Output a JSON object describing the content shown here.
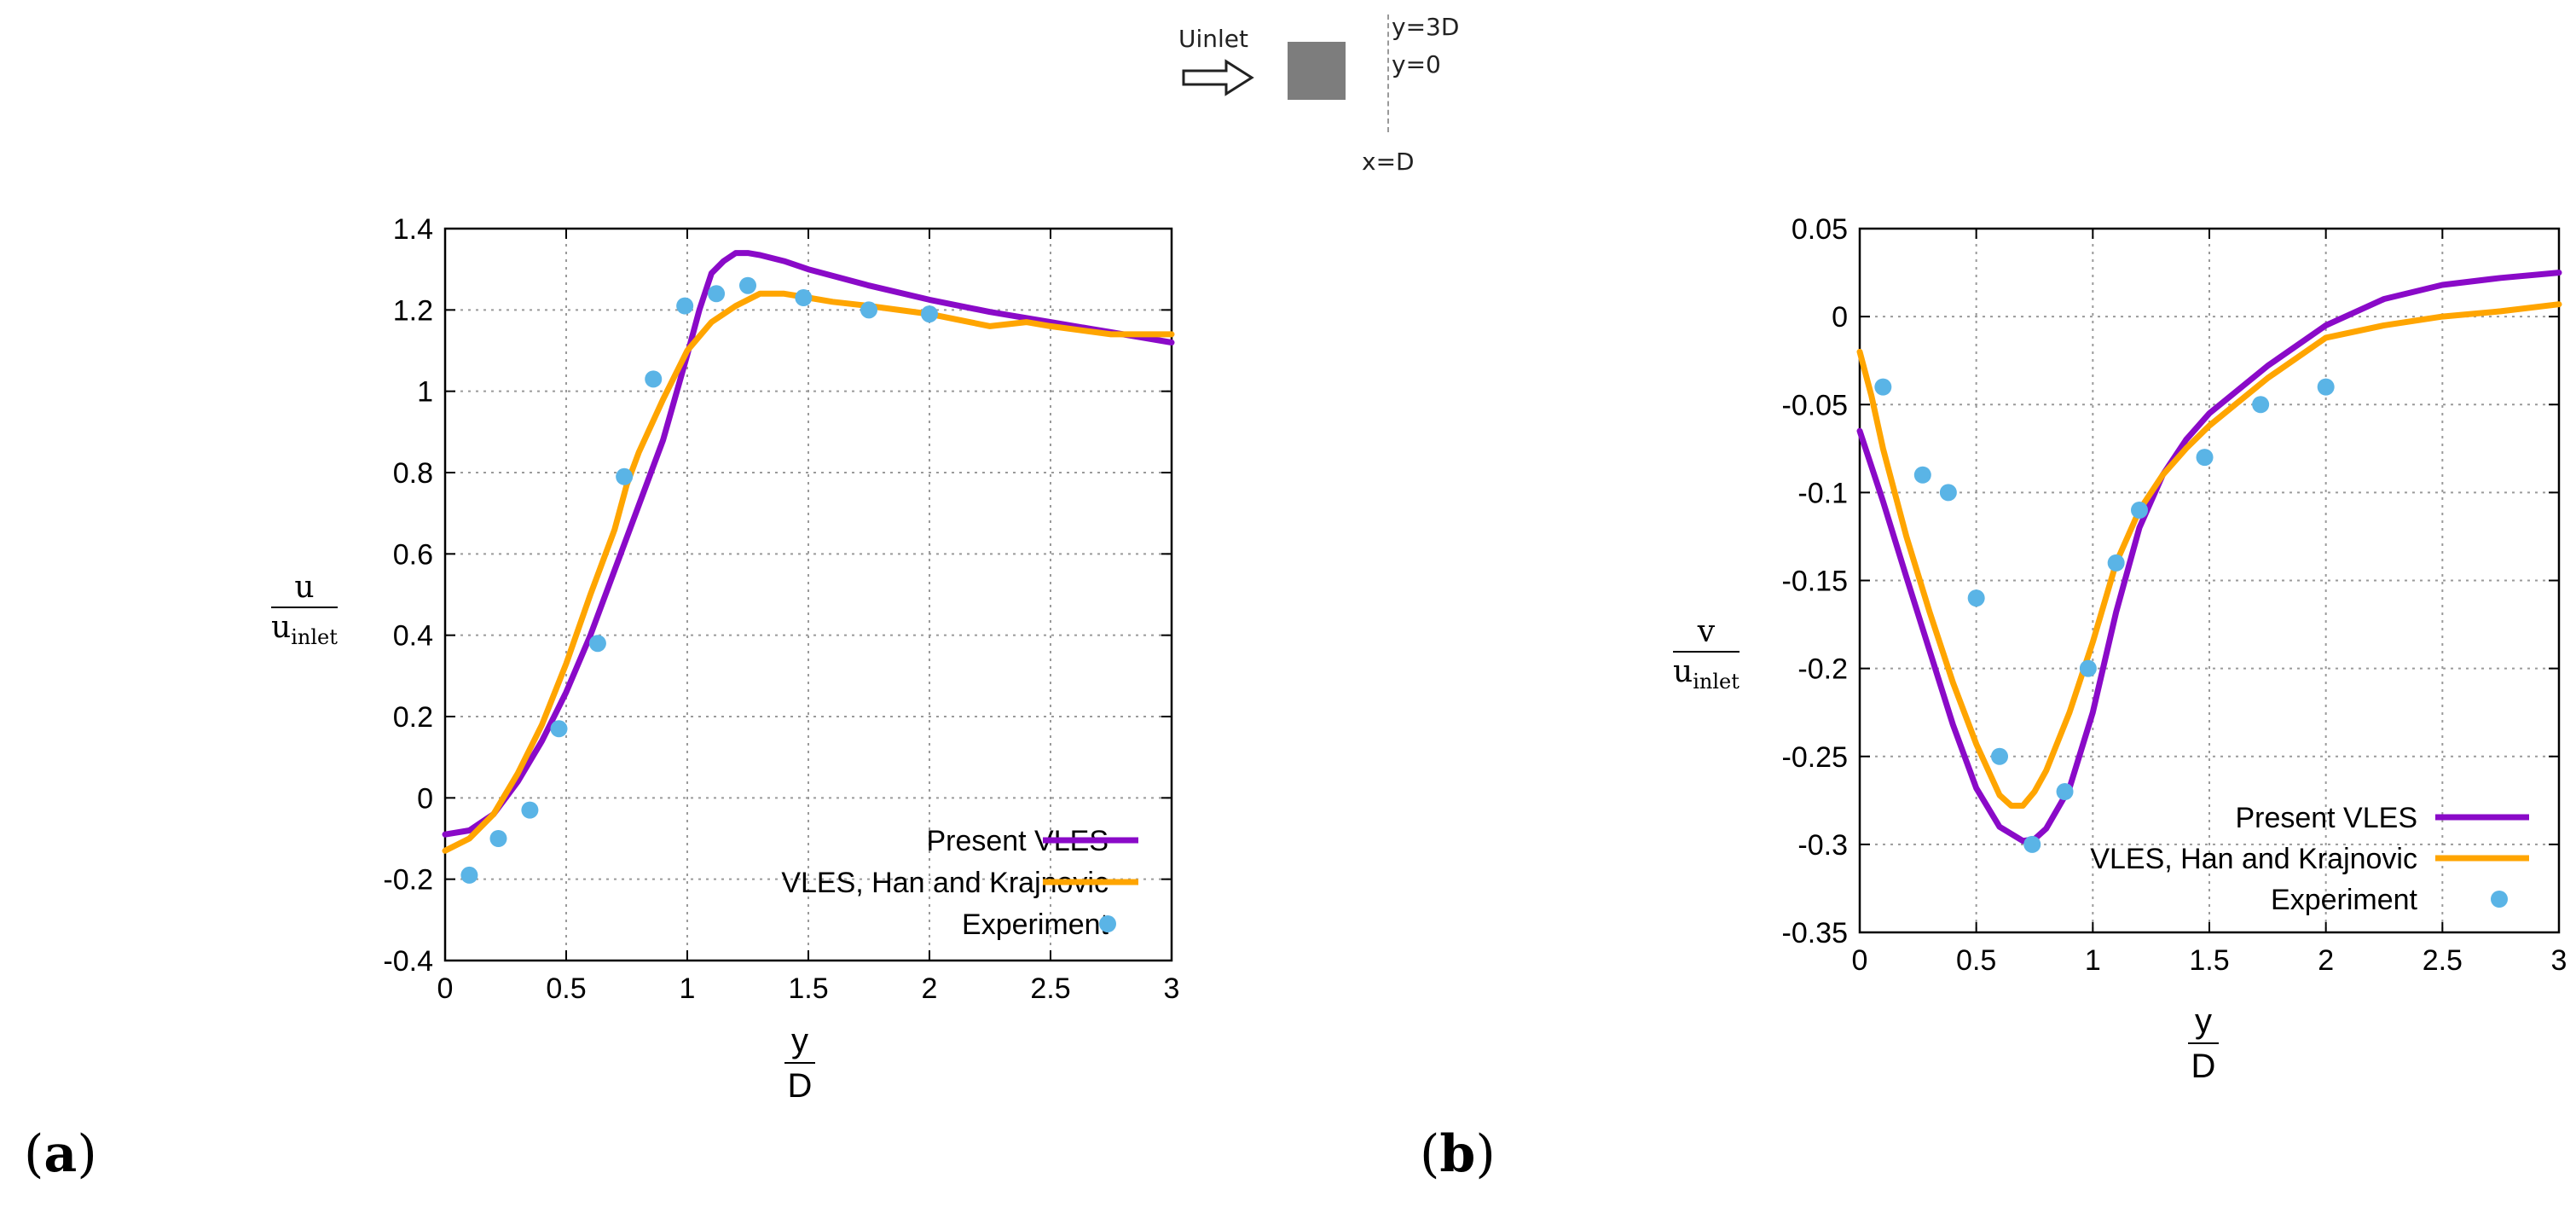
{
  "schematic": {
    "inlet_label": "Uinlet",
    "y_top_label": "y=3D",
    "y_zero_label": "y=0",
    "x_label": "x=D"
  },
  "panels": {
    "a": {
      "open": "(",
      "letter": "a",
      "close": ")"
    },
    "b": {
      "open": "(",
      "letter": "b",
      "close": ")"
    }
  },
  "axis_labels": {
    "a": {
      "y_num": "u",
      "y_den": "u",
      "y_den_sub": "inlet",
      "x_num": "y",
      "x_den": "D"
    },
    "b": {
      "y_num": "v",
      "y_den": "u",
      "y_den_sub": "inlet",
      "x_num": "y",
      "x_den": "D"
    }
  },
  "colors": {
    "present_vles": "#8A0AC8",
    "han_krajnovic": "#FFA500",
    "experiment": "#5AB4E6",
    "grid": "#9a9a9a"
  },
  "chart_data": [
    {
      "id": "a",
      "type": "line",
      "xlim": [
        0,
        3
      ],
      "ylim": [
        -0.4,
        1.4
      ],
      "xticks": [
        0,
        0.5,
        1,
        1.5,
        2,
        2.5,
        3
      ],
      "yticks": [
        -0.4,
        -0.2,
        0,
        0.2,
        0.4,
        0.6,
        0.8,
        1,
        1.2,
        1.4
      ],
      "xtick_labels": [
        "0",
        "0.5",
        "1",
        "1.5",
        "2",
        "2.5",
        "3"
      ],
      "ytick_labels": [
        "-0.4",
        "-0.2",
        "0",
        "0.2",
        "0.4",
        "0.6",
        "0.8",
        "1",
        "1.2",
        "1.4"
      ],
      "grid": true,
      "legend_position": "bottom-right",
      "series": [
        {
          "name": "Present VLES",
          "style": "line",
          "color": "#8A0AC8",
          "x": [
            0,
            0.1,
            0.2,
            0.3,
            0.4,
            0.5,
            0.6,
            0.7,
            0.8,
            0.9,
            1.0,
            1.05,
            1.1,
            1.15,
            1.2,
            1.25,
            1.3,
            1.4,
            1.5,
            1.75,
            2.0,
            2.25,
            2.5,
            2.75,
            3.0
          ],
          "y": [
            -0.09,
            -0.08,
            -0.04,
            0.04,
            0.14,
            0.26,
            0.4,
            0.56,
            0.72,
            0.88,
            1.09,
            1.2,
            1.29,
            1.32,
            1.34,
            1.34,
            1.335,
            1.32,
            1.3,
            1.26,
            1.225,
            1.195,
            1.17,
            1.145,
            1.12
          ]
        },
        {
          "name": "VLES, Han and Krajnovic",
          "style": "line",
          "color": "#FFA500",
          "x": [
            0,
            0.1,
            0.2,
            0.3,
            0.4,
            0.5,
            0.6,
            0.65,
            0.7,
            0.75,
            0.8,
            0.9,
            1.0,
            1.1,
            1.2,
            1.3,
            1.4,
            1.5,
            1.6,
            1.75,
            2.0,
            2.25,
            2.4,
            2.5,
            2.75,
            3.0
          ],
          "y": [
            -0.13,
            -0.1,
            -0.04,
            0.06,
            0.18,
            0.33,
            0.5,
            0.58,
            0.66,
            0.77,
            0.85,
            0.98,
            1.1,
            1.17,
            1.21,
            1.24,
            1.24,
            1.23,
            1.22,
            1.21,
            1.19,
            1.16,
            1.17,
            1.16,
            1.14,
            1.14
          ]
        },
        {
          "name": "Experiment",
          "style": "points",
          "color": "#5AB4E6",
          "x": [
            0.1,
            0.22,
            0.35,
            0.47,
            0.63,
            0.74,
            0.86,
            0.99,
            1.12,
            1.25,
            1.48,
            1.75,
            2.0
          ],
          "y": [
            -0.19,
            -0.1,
            -0.03,
            0.17,
            0.38,
            0.79,
            1.03,
            1.21,
            1.24,
            1.26,
            1.23,
            1.2,
            1.19
          ]
        }
      ]
    },
    {
      "id": "b",
      "type": "line",
      "xlim": [
        0,
        3
      ],
      "ylim": [
        -0.35,
        0.05
      ],
      "xticks": [
        0,
        0.5,
        1,
        1.5,
        2,
        2.5,
        3
      ],
      "yticks": [
        -0.35,
        -0.3,
        -0.25,
        -0.2,
        -0.15,
        -0.1,
        -0.05,
        0,
        0.05
      ],
      "xtick_labels": [
        "0",
        "0.5",
        "1",
        "1.5",
        "2",
        "2.5",
        "3"
      ],
      "ytick_labels": [
        "-0.35",
        "-0.3",
        "-0.25",
        "-0.2",
        "-0.15",
        "-0.1",
        "-0.05",
        "0",
        "0.05"
      ],
      "grid": true,
      "legend_position": "bottom-right",
      "series": [
        {
          "name": "Present VLES",
          "style": "line",
          "color": "#8A0AC8",
          "x": [
            0,
            0.1,
            0.2,
            0.3,
            0.4,
            0.5,
            0.6,
            0.7,
            0.75,
            0.8,
            0.9,
            1.0,
            1.1,
            1.2,
            1.3,
            1.4,
            1.5,
            1.75,
            2.0,
            2.25,
            2.5,
            2.75,
            3.0
          ],
          "y": [
            -0.065,
            -0.105,
            -0.148,
            -0.19,
            -0.232,
            -0.268,
            -0.29,
            -0.298,
            -0.297,
            -0.291,
            -0.268,
            -0.225,
            -0.168,
            -0.12,
            -0.09,
            -0.07,
            -0.055,
            -0.028,
            -0.005,
            0.01,
            0.018,
            0.022,
            0.025
          ]
        },
        {
          "name": "VLES, Han and Krajnovic",
          "style": "line",
          "color": "#FFA500",
          "x": [
            0,
            0.05,
            0.1,
            0.2,
            0.3,
            0.4,
            0.5,
            0.6,
            0.65,
            0.7,
            0.75,
            0.8,
            0.9,
            1.0,
            1.1,
            1.2,
            1.3,
            1.4,
            1.5,
            1.75,
            2.0,
            2.25,
            2.5,
            2.75,
            3.0
          ],
          "y": [
            -0.02,
            -0.045,
            -0.075,
            -0.125,
            -0.168,
            -0.208,
            -0.243,
            -0.272,
            -0.278,
            -0.278,
            -0.27,
            -0.258,
            -0.225,
            -0.185,
            -0.14,
            -0.11,
            -0.09,
            -0.075,
            -0.062,
            -0.035,
            -0.012,
            -0.005,
            0.0,
            0.003,
            0.007
          ]
        },
        {
          "name": "Experiment",
          "style": "points",
          "color": "#5AB4E6",
          "x": [
            0.1,
            0.27,
            0.38,
            0.5,
            0.6,
            0.74,
            0.88,
            0.98,
            1.1,
            1.2,
            1.48,
            1.72,
            2.0
          ],
          "y": [
            -0.04,
            -0.09,
            -0.1,
            -0.16,
            -0.25,
            -0.3,
            -0.27,
            -0.2,
            -0.14,
            -0.11,
            -0.08,
            -0.05,
            -0.04
          ]
        }
      ]
    }
  ]
}
